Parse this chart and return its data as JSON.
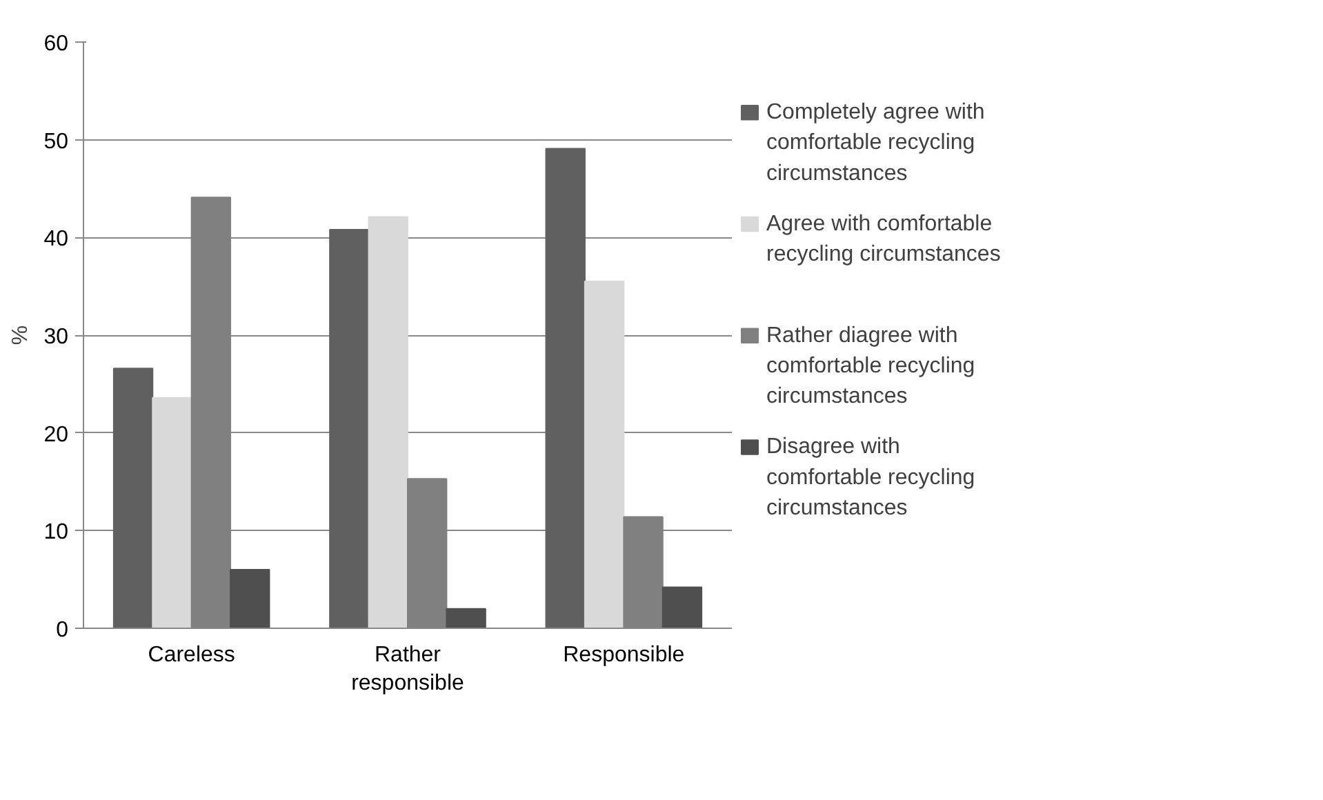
{
  "chart_data": {
    "type": "bar",
    "ylabel": "%",
    "categories": [
      "Careless",
      "Rather responsible",
      "Responsible"
    ],
    "series": [
      {
        "name": "Completely agree with comfortable recycling circumstances",
        "color": "#606060",
        "values": [
          26.6,
          40.8,
          49.1
        ]
      },
      {
        "name": "Agree with comfortable recycling circumstances",
        "color": "#d9d9d9",
        "values": [
          23.6,
          42.1,
          35.5
        ]
      },
      {
        "name": "Rather diagree with comfortable recycling circumstances",
        "color": "#808080",
        "values": [
          44.1,
          15.3,
          11.4
        ]
      },
      {
        "name": "Disagree with comfortable recycling circumstances",
        "color": "#4f4f4f",
        "values": [
          6.0,
          2.0,
          4.2
        ]
      }
    ],
    "ylim": [
      0,
      60
    ],
    "yticks": [
      0,
      10,
      20,
      30,
      40,
      50,
      60
    ],
    "grid": "y",
    "legend": "right"
  }
}
